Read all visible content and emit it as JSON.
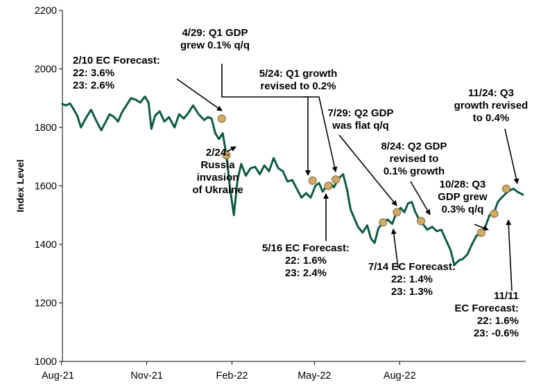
{
  "chart_data": {
    "type": "line",
    "ylabel": "Index Level",
    "ylim": [
      1000,
      2200
    ],
    "yticks": [
      "1000",
      "1200",
      "1400",
      "1600",
      "1800",
      "2000",
      "2200"
    ],
    "xlim": [
      "2021-08-02",
      "2022-12-15"
    ],
    "xticks": [
      {
        "label": "Aug-21",
        "date": "2021-08-01"
      },
      {
        "label": "Nov-21",
        "date": "2021-11-01"
      },
      {
        "label": "Feb-22",
        "date": "2022-02-01"
      },
      {
        "label": "May-22",
        "date": "2022-05-01"
      },
      {
        "label": "Aug-22",
        "date": "2022-08-01"
      }
    ],
    "grid": false,
    "colors": {
      "line": "#0c5a43",
      "marker": "#d2ab62",
      "marker_edge": "#7a6a45"
    },
    "series": [
      {
        "values": [
          [
            "2021-08-02",
            1880
          ],
          [
            "2021-08-06",
            1875
          ],
          [
            "2021-08-10",
            1882
          ],
          [
            "2021-08-13",
            1868
          ],
          [
            "2021-08-18",
            1840
          ],
          [
            "2021-08-22",
            1800
          ],
          [
            "2021-08-27",
            1830
          ],
          [
            "2021-09-02",
            1860
          ],
          [
            "2021-09-08",
            1820
          ],
          [
            "2021-09-13",
            1790
          ],
          [
            "2021-09-17",
            1815
          ],
          [
            "2021-09-22",
            1845
          ],
          [
            "2021-09-27",
            1835
          ],
          [
            "2021-10-01",
            1820
          ],
          [
            "2021-10-05",
            1850
          ],
          [
            "2021-10-10",
            1875
          ],
          [
            "2021-10-15",
            1900
          ],
          [
            "2021-10-20",
            1895
          ],
          [
            "2021-10-25",
            1885
          ],
          [
            "2021-10-30",
            1905
          ],
          [
            "2021-11-03",
            1885
          ],
          [
            "2021-11-06",
            1795
          ],
          [
            "2021-11-10",
            1840
          ],
          [
            "2021-11-15",
            1855
          ],
          [
            "2021-11-20",
            1820
          ],
          [
            "2021-11-25",
            1835
          ],
          [
            "2021-12-01",
            1800
          ],
          [
            "2021-12-06",
            1845
          ],
          [
            "2021-12-11",
            1830
          ],
          [
            "2021-12-16",
            1850
          ],
          [
            "2021-12-21",
            1875
          ],
          [
            "2021-12-27",
            1845
          ],
          [
            "2022-01-02",
            1825
          ],
          [
            "2022-01-06",
            1835
          ],
          [
            "2022-01-10",
            1830
          ],
          [
            "2022-01-14",
            1780
          ],
          [
            "2022-01-18",
            1760
          ],
          [
            "2022-01-22",
            1780
          ],
          [
            "2022-01-26",
            1705
          ],
          [
            "2022-01-30",
            1590
          ],
          [
            "2022-02-03",
            1500
          ],
          [
            "2022-02-07",
            1620
          ],
          [
            "2022-02-11",
            1675
          ],
          [
            "2022-02-16",
            1635
          ],
          [
            "2022-02-21",
            1660
          ],
          [
            "2022-02-26",
            1665
          ],
          [
            "2022-03-03",
            1640
          ],
          [
            "2022-03-08",
            1670
          ],
          [
            "2022-03-13",
            1650
          ],
          [
            "2022-03-18",
            1695
          ],
          [
            "2022-03-23",
            1660
          ],
          [
            "2022-03-28",
            1650
          ],
          [
            "2022-04-02",
            1615
          ],
          [
            "2022-04-07",
            1620
          ],
          [
            "2022-04-12",
            1590
          ],
          [
            "2022-04-17",
            1560
          ],
          [
            "2022-04-22",
            1575
          ],
          [
            "2022-04-27",
            1560
          ],
          [
            "2022-05-02",
            1600
          ],
          [
            "2022-05-06",
            1610
          ],
          [
            "2022-05-10",
            1580
          ],
          [
            "2022-05-14",
            1600
          ],
          [
            "2022-05-18",
            1610
          ],
          [
            "2022-05-22",
            1595
          ],
          [
            "2022-05-27",
            1625
          ],
          [
            "2022-06-01",
            1640
          ],
          [
            "2022-06-05",
            1590
          ],
          [
            "2022-06-09",
            1520
          ],
          [
            "2022-06-13",
            1490
          ],
          [
            "2022-06-17",
            1460
          ],
          [
            "2022-06-22",
            1440
          ],
          [
            "2022-06-27",
            1465
          ],
          [
            "2022-07-01",
            1420
          ],
          [
            "2022-07-05",
            1405
          ],
          [
            "2022-07-09",
            1455
          ],
          [
            "2022-07-14",
            1475
          ],
          [
            "2022-07-19",
            1485
          ],
          [
            "2022-07-24",
            1470
          ],
          [
            "2022-07-28",
            1505
          ],
          [
            "2022-08-02",
            1525
          ],
          [
            "2022-08-06",
            1510
          ],
          [
            "2022-08-10",
            1540
          ],
          [
            "2022-08-14",
            1545
          ],
          [
            "2022-08-18",
            1510
          ],
          [
            "2022-08-22",
            1485
          ],
          [
            "2022-08-26",
            1470
          ],
          [
            "2022-08-31",
            1450
          ],
          [
            "2022-09-05",
            1460
          ],
          [
            "2022-09-10",
            1445
          ],
          [
            "2022-09-15",
            1450
          ],
          [
            "2022-09-20",
            1415
          ],
          [
            "2022-09-25",
            1380
          ],
          [
            "2022-09-29",
            1330
          ],
          [
            "2022-10-04",
            1345
          ],
          [
            "2022-10-08",
            1350
          ],
          [
            "2022-10-13",
            1365
          ],
          [
            "2022-10-18",
            1400
          ],
          [
            "2022-10-23",
            1430
          ],
          [
            "2022-10-28",
            1440
          ],
          [
            "2022-11-02",
            1465
          ],
          [
            "2022-11-06",
            1500
          ],
          [
            "2022-11-11",
            1510
          ],
          [
            "2022-11-15",
            1545
          ],
          [
            "2022-11-19",
            1560
          ],
          [
            "2022-11-24",
            1575
          ],
          [
            "2022-11-28",
            1585
          ],
          [
            "2022-12-02",
            1590
          ],
          [
            "2022-12-06",
            1580
          ],
          [
            "2022-12-12",
            1570
          ]
        ]
      }
    ],
    "markers": [
      {
        "date": "2022-01-21",
        "value": 1830
      },
      {
        "date": "2022-01-26",
        "value": 1705
      },
      {
        "date": "2022-04-29",
        "value": 1618
      },
      {
        "date": "2022-05-16",
        "value": 1600
      },
      {
        "date": "2022-05-24",
        "value": 1622
      },
      {
        "date": "2022-07-14",
        "value": 1475
      },
      {
        "date": "2022-07-29",
        "value": 1510
      },
      {
        "date": "2022-08-24",
        "value": 1480
      },
      {
        "date": "2022-10-28",
        "value": 1440
      },
      {
        "date": "2022-11-11",
        "value": 1505
      },
      {
        "date": "2022-11-24",
        "value": 1590
      }
    ],
    "annotations": [
      {
        "lines": [
          "2/10 EC Forecast:",
          "22: 3.6%",
          "23: 2.6%"
        ],
        "date": "2022-01-21"
      },
      {
        "lines": [
          "4/29: Q1 GDP",
          "grew 0.1% q/q"
        ],
        "date": "2022-04-29"
      },
      {
        "lines": [
          "5/24: Q1 growth",
          "revised to 0.2%"
        ],
        "date": "2022-05-24"
      },
      {
        "lines": [
          "2/24:",
          "Russia",
          "invasion",
          "of Ukraine"
        ],
        "date": "2022-01-26"
      },
      {
        "lines": [
          "7/29: Q2 GDP",
          "was flat q/q"
        ],
        "date": "2022-07-29"
      },
      {
        "lines": [
          "8/24: Q2 GDP",
          "revised to",
          "0.1% growth"
        ],
        "date": "2022-08-24"
      },
      {
        "lines": [
          "11/24: Q3",
          "growth revised",
          "to 0.4%"
        ],
        "date": "2022-11-24"
      },
      {
        "lines": [
          "10/28: Q3",
          "GDP grew",
          "0.3% q/q"
        ],
        "date": "2022-10-28"
      },
      {
        "lines": [
          "5/16 EC Forecast:",
          "22: 1.6%",
          "23: 2.4%"
        ],
        "date": "2022-05-16"
      },
      {
        "lines": [
          "7/14 EC Forecast:",
          "22: 1.4%",
          "23: 1.3%"
        ],
        "date": "2022-07-14"
      },
      {
        "lines": [
          "11/11",
          "EC Forecast:",
          "22: 1.6%",
          "23: -0.6%"
        ],
        "date": "2022-11-11"
      }
    ]
  }
}
